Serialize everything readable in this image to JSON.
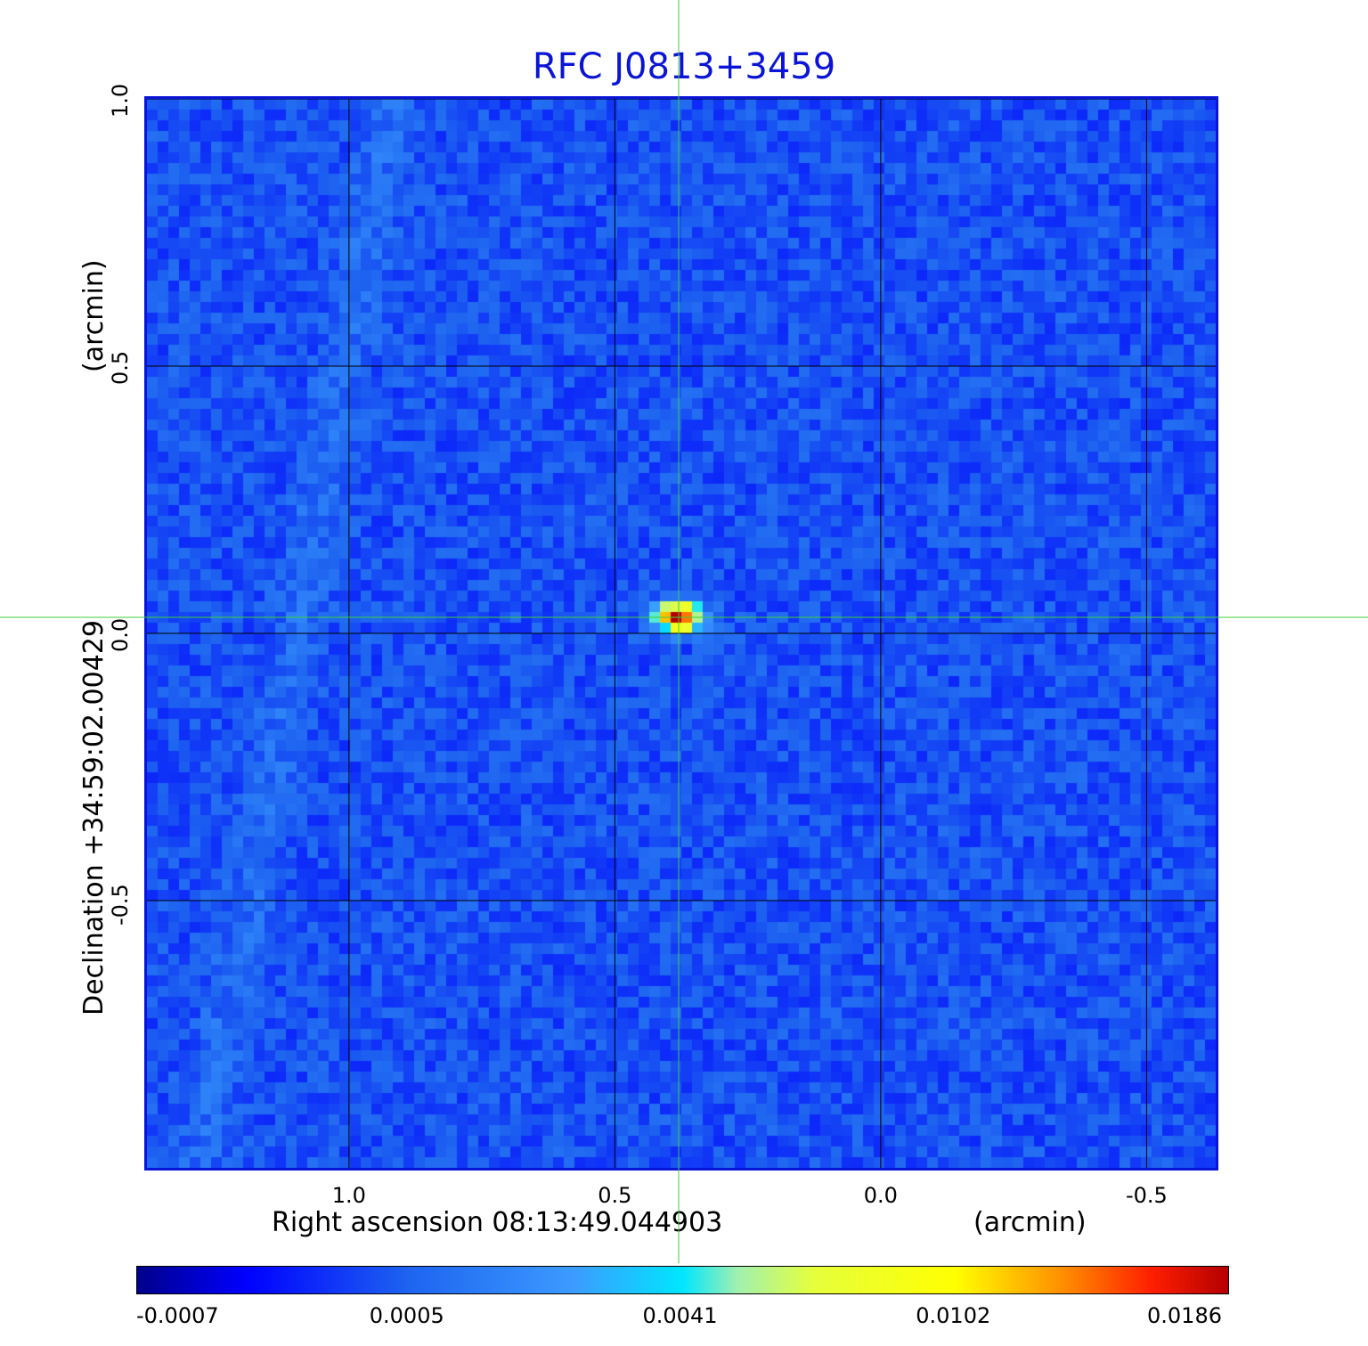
{
  "chart_data": {
    "type": "heatmap",
    "title": "RFC J0813+3459",
    "xlabel": "Right ascension  08:13:49.044903",
    "xunit": "(arcmin)",
    "ylabel": "Declination  +34:59:02.00429",
    "yunit": "(arcmin)",
    "xlim": [
      1.38,
      -0.63
    ],
    "ylim": [
      -1.0,
      1.0
    ],
    "x_ticks": [
      "1.0",
      "0.5",
      "0.0",
      "-0.5"
    ],
    "y_ticks": [
      "1.0",
      "0.5",
      "0.0",
      "-0.5"
    ],
    "x_tick_values": [
      1.0,
      0.5,
      0.0,
      -0.5
    ],
    "y_tick_values": [
      1.0,
      0.5,
      0.0,
      -0.5
    ],
    "grid": true,
    "crosshair": {
      "x": 0.38,
      "y": 0.03
    },
    "source": {
      "x": 0.38,
      "y": 0.03,
      "peak": 0.0186
    },
    "colorbar": {
      "ticks": [
        "-0.0007",
        "0.0005",
        "0.0041",
        "0.0102",
        "0.0186"
      ],
      "min": -0.0007,
      "max": 0.0186,
      "colormap": "jet"
    }
  }
}
